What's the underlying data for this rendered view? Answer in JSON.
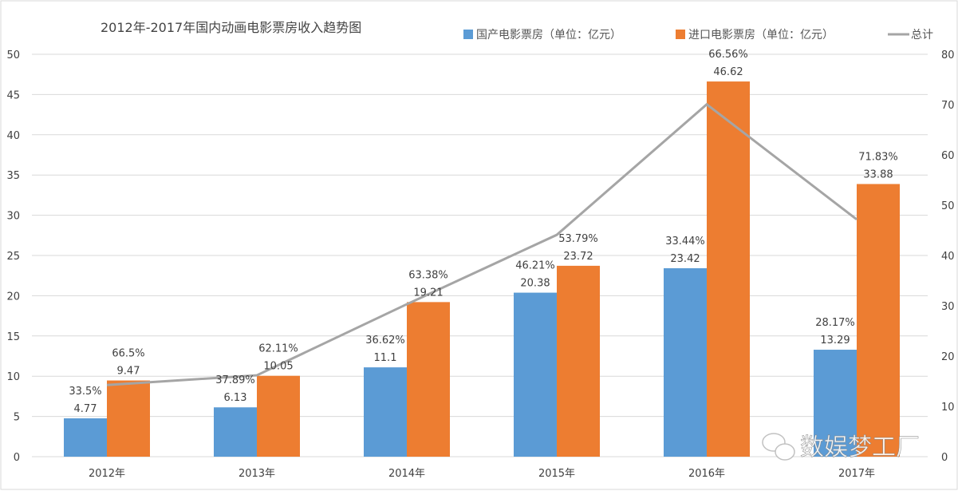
{
  "chart_data": {
    "type": "bar",
    "title": "2012年-2017年国内动画电影票房收入趋势图",
    "categories": [
      "2012年",
      "2013年",
      "2014年",
      "2015年",
      "2016年",
      "2017年"
    ],
    "series": [
      {
        "name": "国产电影票房（单位：亿元）",
        "kind": "bar",
        "axis": "left",
        "color": "#5B9BD5",
        "values": [
          4.77,
          6.13,
          11.1,
          20.38,
          23.42,
          13.29
        ],
        "pct_labels": [
          "33.5%",
          "37.89%",
          "36.62%",
          "46.21%",
          "33.44%",
          "28.17%"
        ],
        "value_labels": [
          "4.77",
          "6.13",
          "11.1",
          "20.38",
          "23.42",
          "13.29"
        ]
      },
      {
        "name": "进口电影票房（单位：亿元）",
        "kind": "bar",
        "axis": "left",
        "color": "#ED7D31",
        "values": [
          9.47,
          10.05,
          19.21,
          23.72,
          46.62,
          33.88
        ],
        "pct_labels": [
          "66.5%",
          "62.11%",
          "63.38%",
          "53.79%",
          "66.56%",
          "71.83%"
        ],
        "value_labels": [
          "9.47",
          "10.05",
          "19.21",
          "23.72",
          "46.62",
          "33.88"
        ]
      },
      {
        "name": "总计",
        "kind": "line",
        "axis": "right",
        "color": "#A5A5A5",
        "values": [
          14.24,
          16.18,
          30.31,
          44.1,
          70.04,
          47.17
        ]
      }
    ],
    "ylim": [
      0,
      50
    ],
    "y_ticks": [
      "0",
      "5",
      "10",
      "15",
      "20",
      "25",
      "30",
      "35",
      "40",
      "45",
      "50"
    ],
    "y2lim": [
      0,
      80
    ],
    "y2_ticks": [
      "0",
      "10",
      "20",
      "30",
      "40",
      "50",
      "60",
      "70",
      "80"
    ],
    "grid": true,
    "legend_position": "top-right",
    "watermark": "数娱梦工厂"
  }
}
